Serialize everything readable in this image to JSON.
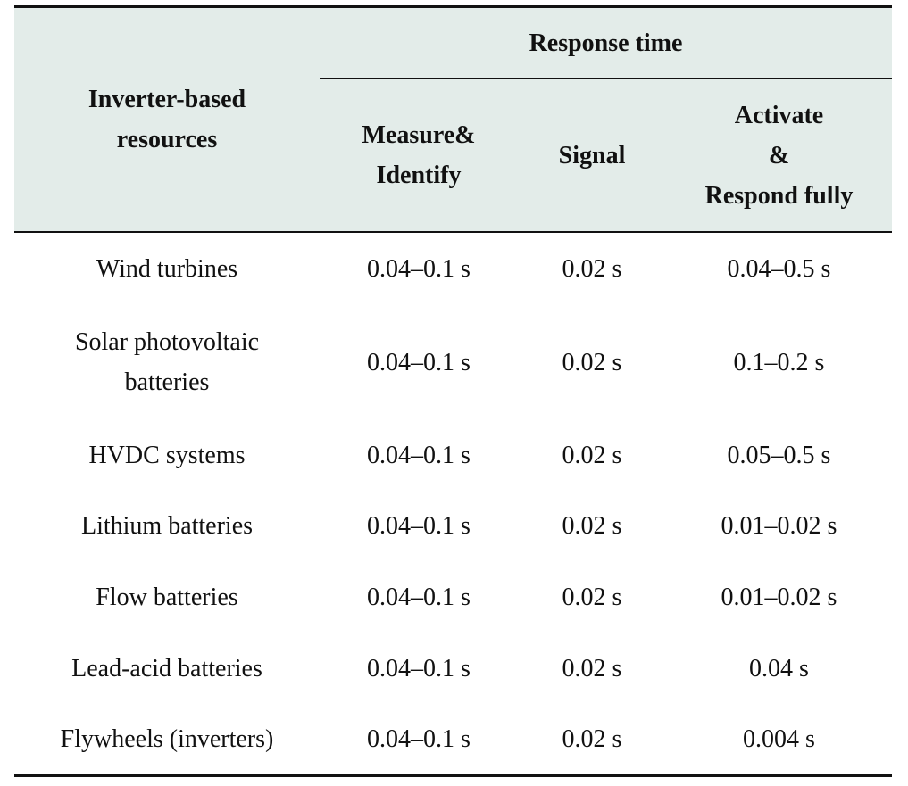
{
  "table": {
    "header": {
      "resource_label": "Inverter-based\nresources",
      "group_label": "Response time",
      "columns": [
        "Measure&\nIdentify",
        "Signal",
        "Activate\n&\nRespond fully"
      ]
    },
    "rows": [
      {
        "resource": "Wind turbines",
        "measure": "0.04–0.1 s",
        "signal": "0.02 s",
        "activate": "0.04–0.5 s"
      },
      {
        "resource": "Solar photovoltaic\nbatteries",
        "measure": "0.04–0.1 s",
        "signal": "0.02 s",
        "activate": "0.1–0.2 s"
      },
      {
        "resource": "HVDC systems",
        "measure": "0.04–0.1 s",
        "signal": "0.02 s",
        "activate": "0.05–0.5 s"
      },
      {
        "resource": "Lithium batteries",
        "measure": "0.04–0.1 s",
        "signal": "0.02 s",
        "activate": "0.01–0.02 s"
      },
      {
        "resource": "Flow batteries",
        "measure": "0.04–0.1 s",
        "signal": "0.02 s",
        "activate": "0.01–0.02 s"
      },
      {
        "resource": "Lead-acid batteries",
        "measure": "0.04–0.1 s",
        "signal": "0.02 s",
        "activate": "0.04 s"
      },
      {
        "resource": "Flywheels (inverters)",
        "measure": "0.04–0.1 s",
        "signal": "0.02 s",
        "activate": "0.004 s"
      }
    ]
  }
}
